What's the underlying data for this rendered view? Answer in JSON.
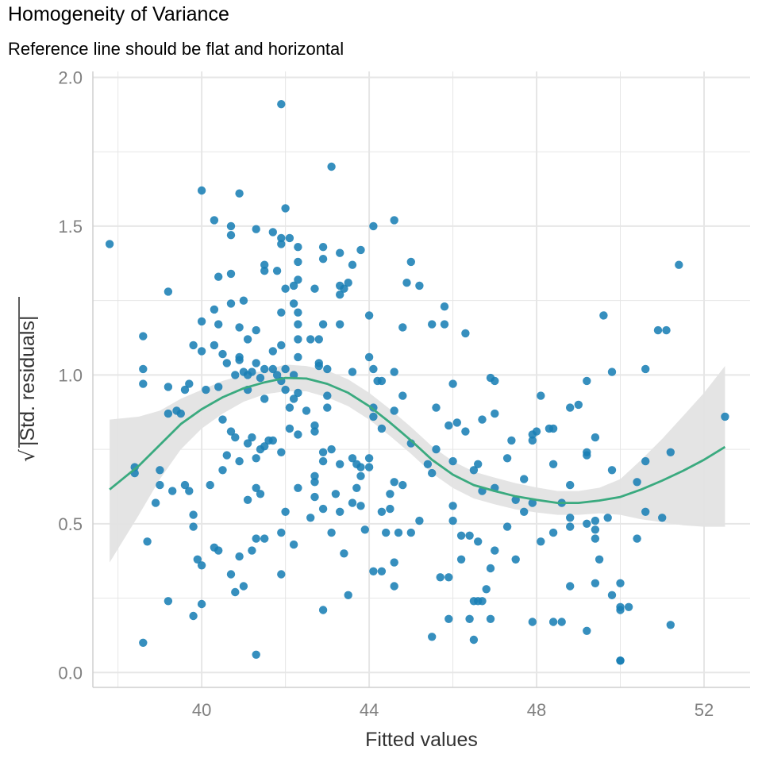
{
  "chart_data": {
    "type": "scatter",
    "title": "Homogeneity of Variance",
    "subtitle": "Reference line should be flat and horizontal",
    "xlabel": "Fitted values",
    "ylabel_radical": "√",
    "ylabel": "|Std. residuals|",
    "xlim": [
      37.4,
      53.1
    ],
    "ylim": [
      -0.05,
      2.02
    ],
    "x_ticks": [
      40,
      44,
      48,
      52
    ],
    "x_tick_labels": [
      "40",
      "44",
      "48",
      "52"
    ],
    "y_ticks": [
      0.0,
      0.5,
      1.0,
      1.5,
      2.0
    ],
    "y_tick_labels": [
      "0.0",
      "0.5",
      "1.0",
      "1.5",
      "2.0"
    ],
    "grid": true,
    "colors": {
      "points": "#1a7fb5",
      "smooth_line": "#3aaa7f",
      "confidence_band": "#e3e3e3",
      "grid": "#e6e6e6",
      "axis_text": "#808080",
      "axis_title": "#333333"
    },
    "points": [
      [
        37.8,
        1.44
      ],
      [
        38.4,
        0.67
      ],
      [
        38.4,
        0.69
      ],
      [
        38.6,
        1.13
      ],
      [
        38.6,
        1.02
      ],
      [
        38.6,
        0.97
      ],
      [
        38.6,
        0.1
      ],
      [
        38.7,
        0.44
      ],
      [
        38.9,
        0.57
      ],
      [
        39.0,
        0.68
      ],
      [
        39.0,
        0.63
      ],
      [
        39.2,
        1.28
      ],
      [
        39.2,
        0.96
      ],
      [
        39.2,
        0.87
      ],
      [
        39.2,
        0.24
      ],
      [
        39.3,
        0.61
      ],
      [
        39.4,
        0.88
      ],
      [
        39.5,
        0.87
      ],
      [
        39.6,
        0.95
      ],
      [
        39.6,
        0.63
      ],
      [
        39.7,
        0.97
      ],
      [
        39.7,
        0.61
      ],
      [
        39.8,
        1.1
      ],
      [
        39.8,
        0.53
      ],
      [
        39.8,
        0.49
      ],
      [
        39.8,
        0.19
      ],
      [
        39.9,
        0.38
      ],
      [
        40.0,
        1.62
      ],
      [
        40.0,
        1.18
      ],
      [
        40.0,
        1.08
      ],
      [
        40.0,
        0.36
      ],
      [
        40.0,
        0.23
      ],
      [
        40.1,
        0.95
      ],
      [
        40.2,
        0.63
      ],
      [
        40.3,
        1.52
      ],
      [
        40.3,
        1.22
      ],
      [
        40.3,
        1.1
      ],
      [
        40.3,
        0.42
      ],
      [
        40.4,
        1.33
      ],
      [
        40.4,
        1.17
      ],
      [
        40.4,
        0.96
      ],
      [
        40.4,
        0.41
      ],
      [
        40.5,
        1.07
      ],
      [
        40.5,
        0.85
      ],
      [
        40.5,
        0.68
      ],
      [
        40.6,
        1.04
      ],
      [
        40.6,
        0.73
      ],
      [
        40.7,
        1.34
      ],
      [
        40.7,
        1.24
      ],
      [
        40.7,
        1.5
      ],
      [
        40.7,
        1.47
      ],
      [
        40.7,
        0.81
      ],
      [
        40.7,
        0.33
      ],
      [
        40.8,
        1.0
      ],
      [
        40.8,
        0.79
      ],
      [
        40.8,
        0.27
      ],
      [
        40.9,
        1.61
      ],
      [
        40.9,
        1.16
      ],
      [
        40.9,
        1.06
      ],
      [
        40.9,
        1.05
      ],
      [
        40.9,
        0.71
      ],
      [
        40.9,
        0.39
      ],
      [
        41.0,
        1.25
      ],
      [
        41.0,
        1.01
      ],
      [
        41.0,
        0.29
      ],
      [
        41.1,
        1.12
      ],
      [
        41.1,
        1.0
      ],
      [
        41.1,
        0.95
      ],
      [
        41.1,
        0.77
      ],
      [
        41.1,
        0.58
      ],
      [
        41.2,
        1.01
      ],
      [
        41.2,
        0.79
      ],
      [
        41.2,
        0.41
      ],
      [
        41.3,
        1.49
      ],
      [
        41.3,
        1.15
      ],
      [
        41.3,
        1.04
      ],
      [
        41.3,
        0.72
      ],
      [
        41.3,
        0.62
      ],
      [
        41.3,
        0.45
      ],
      [
        41.3,
        0.06
      ],
      [
        41.4,
        0.99
      ],
      [
        41.4,
        0.75
      ],
      [
        41.4,
        0.6
      ],
      [
        41.5,
        1.37
      ],
      [
        41.5,
        1.35
      ],
      [
        41.5,
        1.02
      ],
      [
        41.5,
        0.92
      ],
      [
        41.5,
        0.76
      ],
      [
        41.5,
        0.45
      ],
      [
        41.6,
        0.78
      ],
      [
        41.7,
        1.48
      ],
      [
        41.7,
        1.08
      ],
      [
        41.7,
        1.02
      ],
      [
        41.7,
        0.78
      ],
      [
        41.8,
        1.35
      ],
      [
        41.8,
        1.0
      ],
      [
        41.9,
        1.91
      ],
      [
        41.9,
        1.46
      ],
      [
        41.9,
        1.44
      ],
      [
        41.9,
        1.21
      ],
      [
        41.9,
        1.1
      ],
      [
        41.9,
        0.98
      ],
      [
        41.9,
        0.74
      ],
      [
        41.9,
        0.47
      ],
      [
        41.9,
        0.33
      ],
      [
        42.0,
        1.56
      ],
      [
        42.0,
        1.29
      ],
      [
        42.0,
        1.02
      ],
      [
        42.0,
        0.95
      ],
      [
        42.0,
        0.54
      ],
      [
        42.1,
        1.46
      ],
      [
        42.1,
        0.89
      ],
      [
        42.1,
        0.82
      ],
      [
        42.2,
        1.3
      ],
      [
        42.2,
        1.24
      ],
      [
        42.2,
        1.0
      ],
      [
        42.2,
        0.92
      ],
      [
        42.2,
        0.43
      ],
      [
        42.3,
        1.43
      ],
      [
        42.3,
        1.38
      ],
      [
        42.3,
        1.32
      ],
      [
        42.3,
        1.17
      ],
      [
        42.3,
        1.21
      ],
      [
        42.3,
        1.12
      ],
      [
        42.3,
        1.06
      ],
      [
        42.3,
        0.94
      ],
      [
        42.3,
        0.8
      ],
      [
        42.3,
        0.62
      ],
      [
        42.5,
        0.88
      ],
      [
        42.6,
        1.12
      ],
      [
        42.6,
        0.52
      ],
      [
        42.7,
        1.29
      ],
      [
        42.7,
        0.83
      ],
      [
        42.7,
        0.81
      ],
      [
        42.7,
        0.66
      ],
      [
        42.7,
        0.64
      ],
      [
        42.7,
        0.59
      ],
      [
        42.8,
        1.12
      ],
      [
        42.8,
        1.04
      ],
      [
        42.8,
        1.03
      ],
      [
        42.9,
        1.43
      ],
      [
        42.9,
        1.39
      ],
      [
        42.9,
        1.17
      ],
      [
        42.9,
        0.74
      ],
      [
        42.9,
        0.71
      ],
      [
        42.9,
        0.55
      ],
      [
        42.9,
        0.21
      ],
      [
        43.0,
        1.02
      ],
      [
        43.0,
        0.93
      ],
      [
        43.0,
        0.89
      ],
      [
        43.1,
        1.7
      ],
      [
        43.1,
        0.75
      ],
      [
        43.1,
        0.47
      ],
      [
        43.2,
        0.6
      ],
      [
        43.3,
        1.41
      ],
      [
        43.3,
        1.3
      ],
      [
        43.3,
        1.27
      ],
      [
        43.3,
        1.17
      ],
      [
        43.3,
        0.7
      ],
      [
        43.3,
        0.54
      ],
      [
        43.4,
        1.29
      ],
      [
        43.4,
        0.4
      ],
      [
        43.5,
        1.31
      ],
      [
        43.5,
        0.26
      ],
      [
        43.6,
        1.37
      ],
      [
        43.6,
        1.01
      ],
      [
        43.6,
        0.72
      ],
      [
        43.6,
        0.57
      ],
      [
        43.7,
        0.7
      ],
      [
        43.7,
        0.62
      ],
      [
        43.8,
        1.42
      ],
      [
        43.8,
        0.69
      ],
      [
        43.8,
        0.66
      ],
      [
        43.8,
        0.56
      ],
      [
        43.9,
        0.48
      ],
      [
        44.0,
        1.2
      ],
      [
        44.0,
        1.06
      ],
      [
        44.0,
        0.72
      ],
      [
        44.0,
        0.69
      ],
      [
        44.1,
        1.5
      ],
      [
        44.1,
        1.02
      ],
      [
        44.1,
        0.89
      ],
      [
        44.1,
        0.86
      ],
      [
        44.1,
        0.34
      ],
      [
        44.2,
        0.98
      ],
      [
        44.3,
        0.98
      ],
      [
        44.3,
        0.82
      ],
      [
        44.3,
        0.54
      ],
      [
        44.3,
        0.34
      ],
      [
        44.4,
        0.47
      ],
      [
        44.5,
        0.6
      ],
      [
        44.5,
        0.55
      ],
      [
        44.6,
        1.52
      ],
      [
        44.6,
        1.01
      ],
      [
        44.6,
        0.88
      ],
      [
        44.6,
        0.64
      ],
      [
        44.6,
        0.37
      ],
      [
        44.6,
        0.29
      ],
      [
        44.7,
        0.47
      ],
      [
        44.8,
        1.16
      ],
      [
        44.8,
        0.93
      ],
      [
        44.8,
        0.63
      ],
      [
        44.9,
        1.31
      ],
      [
        45.0,
        1.38
      ],
      [
        45.0,
        0.77
      ],
      [
        45.0,
        0.47
      ],
      [
        45.2,
        1.3
      ],
      [
        45.2,
        0.51
      ],
      [
        45.4,
        0.7
      ],
      [
        45.5,
        1.17
      ],
      [
        45.5,
        0.67
      ],
      [
        45.5,
        0.12
      ],
      [
        45.6,
        0.89
      ],
      [
        45.6,
        0.75
      ],
      [
        45.7,
        0.32
      ],
      [
        45.8,
        1.23
      ],
      [
        45.8,
        1.17
      ],
      [
        45.9,
        0.83
      ],
      [
        45.9,
        0.32
      ],
      [
        45.9,
        0.18
      ],
      [
        46.0,
        0.97
      ],
      [
        46.0,
        0.71
      ],
      [
        46.0,
        0.56
      ],
      [
        46.0,
        0.51
      ],
      [
        46.1,
        0.84
      ],
      [
        46.2,
        0.46
      ],
      [
        46.2,
        0.38
      ],
      [
        46.3,
        1.14
      ],
      [
        46.3,
        0.81
      ],
      [
        46.4,
        0.46
      ],
      [
        46.4,
        0.18
      ],
      [
        46.5,
        0.68
      ],
      [
        46.5,
        0.24
      ],
      [
        46.5,
        0.11
      ],
      [
        46.6,
        0.7
      ],
      [
        46.6,
        0.44
      ],
      [
        46.6,
        0.24
      ],
      [
        46.7,
        0.85
      ],
      [
        46.7,
        0.61
      ],
      [
        46.7,
        0.24
      ],
      [
        46.8,
        0.28
      ],
      [
        46.9,
        0.99
      ],
      [
        46.9,
        0.35
      ],
      [
        46.9,
        0.18
      ],
      [
        47.0,
        0.98
      ],
      [
        47.0,
        0.87
      ],
      [
        47.0,
        0.62
      ],
      [
        47.0,
        0.41
      ],
      [
        47.3,
        0.72
      ],
      [
        47.3,
        0.49
      ],
      [
        47.4,
        0.78
      ],
      [
        47.5,
        0.58
      ],
      [
        47.5,
        0.38
      ],
      [
        47.7,
        0.65
      ],
      [
        47.7,
        0.54
      ],
      [
        47.9,
        0.8
      ],
      [
        47.9,
        0.78
      ],
      [
        47.9,
        0.57
      ],
      [
        47.9,
        0.17
      ],
      [
        48.0,
        0.81
      ],
      [
        48.1,
        0.93
      ],
      [
        48.1,
        0.44
      ],
      [
        48.3,
        0.82
      ],
      [
        48.4,
        0.82
      ],
      [
        48.4,
        0.7
      ],
      [
        48.4,
        0.47
      ],
      [
        48.4,
        0.17
      ],
      [
        48.6,
        0.17
      ],
      [
        48.6,
        0.57
      ],
      [
        48.8,
        0.89
      ],
      [
        48.8,
        0.63
      ],
      [
        48.8,
        0.52
      ],
      [
        48.8,
        0.49
      ],
      [
        48.8,
        0.29
      ],
      [
        49.0,
        0.9
      ],
      [
        49.2,
        0.98
      ],
      [
        49.2,
        0.74
      ],
      [
        49.2,
        0.73
      ],
      [
        49.2,
        0.5
      ],
      [
        49.2,
        0.14
      ],
      [
        49.4,
        0.79
      ],
      [
        49.4,
        0.48
      ],
      [
        49.4,
        0.45
      ],
      [
        49.4,
        0.3
      ],
      [
        49.4,
        0.51
      ],
      [
        49.5,
        0.38
      ],
      [
        49.6,
        1.2
      ],
      [
        49.7,
        0.52
      ],
      [
        49.8,
        1.01
      ],
      [
        49.8,
        0.68
      ],
      [
        49.8,
        0.26
      ],
      [
        50.0,
        0.3
      ],
      [
        50.0,
        0.22
      ],
      [
        50.0,
        0.21
      ],
      [
        50.0,
        0.04
      ],
      [
        50.0,
        0.04
      ],
      [
        50.2,
        0.22
      ],
      [
        50.4,
        0.64
      ],
      [
        50.4,
        0.45
      ],
      [
        50.6,
        1.02
      ],
      [
        50.6,
        0.71
      ],
      [
        50.6,
        0.54
      ],
      [
        50.9,
        1.15
      ],
      [
        51.0,
        0.52
      ],
      [
        51.1,
        1.15
      ],
      [
        51.2,
        0.74
      ],
      [
        51.2,
        0.16
      ],
      [
        51.4,
        1.37
      ],
      [
        52.5,
        0.86
      ]
    ],
    "smooth": {
      "x": [
        37.8,
        38.5,
        39.0,
        39.5,
        40.0,
        40.5,
        41.0,
        41.5,
        42.0,
        42.5,
        43.0,
        43.5,
        44.0,
        44.5,
        45.0,
        45.5,
        46.0,
        46.5,
        47.0,
        47.5,
        48.0,
        48.5,
        49.0,
        49.5,
        50.0,
        50.5,
        51.0,
        51.5,
        52.0,
        52.5
      ],
      "y": [
        0.615,
        0.695,
        0.765,
        0.835,
        0.885,
        0.925,
        0.955,
        0.975,
        0.99,
        0.988,
        0.97,
        0.94,
        0.895,
        0.84,
        0.78,
        0.715,
        0.665,
        0.63,
        0.61,
        0.592,
        0.58,
        0.57,
        0.57,
        0.578,
        0.59,
        0.615,
        0.645,
        0.678,
        0.715,
        0.758
      ],
      "ci_lower": [
        0.37,
        0.53,
        0.65,
        0.75,
        0.82,
        0.87,
        0.91,
        0.935,
        0.945,
        0.945,
        0.925,
        0.895,
        0.85,
        0.795,
        0.735,
        0.67,
        0.62,
        0.585,
        0.565,
        0.548,
        0.538,
        0.53,
        0.53,
        0.535,
        0.53,
        0.515,
        0.505,
        0.495,
        0.49,
        0.49
      ],
      "ci_upper": [
        0.85,
        0.86,
        0.88,
        0.92,
        0.95,
        0.98,
        1.0,
        1.015,
        1.035,
        1.03,
        1.015,
        0.985,
        0.94,
        0.885,
        0.825,
        0.76,
        0.71,
        0.675,
        0.655,
        0.636,
        0.622,
        0.61,
        0.61,
        0.621,
        0.65,
        0.715,
        0.785,
        0.862,
        0.94,
        1.03
      ]
    }
  }
}
